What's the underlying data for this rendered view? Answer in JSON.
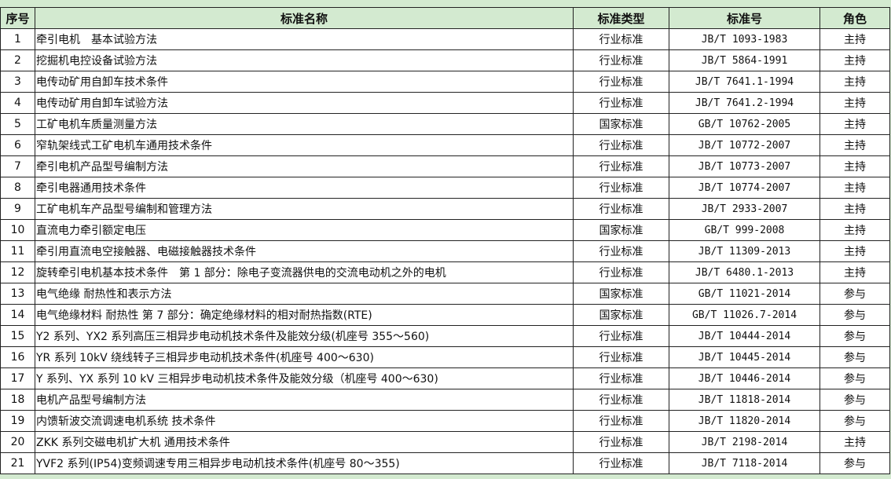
{
  "headers": [
    "序号",
    "标准名称",
    "标准类型",
    "标准号",
    "角色"
  ],
  "rows": [
    [
      "1",
      "牵引电机　基本试验方法",
      "行业标准",
      "JB/T 1093-1983",
      "主持"
    ],
    [
      "2",
      "挖掘机电控设备试验方法",
      "行业标准",
      "JB/T 5864-1991",
      "主持"
    ],
    [
      "3",
      "电传动矿用自卸车技术条件",
      "行业标准",
      "JB/T 7641.1-1994",
      "主持"
    ],
    [
      "4",
      "电传动矿用自卸车试验方法",
      "行业标准",
      "JB/T 7641.2-1994",
      "主持"
    ],
    [
      "5",
      "工矿电机车质量测量方法",
      "国家标准",
      "GB/T 10762-2005",
      "主持"
    ],
    [
      "6",
      "窄轨架线式工矿电机车通用技术条件",
      "行业标准",
      "JB/T 10772-2007",
      "主持"
    ],
    [
      "7",
      "牵引电机产品型号编制方法",
      "行业标准",
      "JB/T 10773-2007",
      "主持"
    ],
    [
      "8",
      "牵引电器通用技术条件",
      "行业标准",
      "JB/T 10774-2007",
      "主持"
    ],
    [
      "9",
      "工矿电机车产品型号编制和管理方法",
      "行业标准",
      "JB/T 2933-2007",
      "主持"
    ],
    [
      "10",
      "直流电力牵引额定电压",
      "国家标准",
      "GB/T 999-2008",
      "主持"
    ],
    [
      "11",
      "牵引用直流电空接触器、电磁接触器技术条件",
      "行业标准",
      "JB/T 11309-2013",
      "主持"
    ],
    [
      "12",
      "旋转牵引电机基本技术条件　第 1 部分：除电子变流器供电的交流电动机之外的电机",
      "行业标准",
      "JB/T 6480.1-2013",
      "主持"
    ],
    [
      "13",
      "电气绝缘 耐热性和表示方法",
      "国家标准",
      "GB/T 11021-2014",
      "参与"
    ],
    [
      "14",
      "电气绝缘材料 耐热性 第 7 部分：确定绝缘材料的相对耐热指数(RTE)",
      "国家标准",
      "GB/T 11026.7-2014",
      "参与"
    ],
    [
      "15",
      "Y2 系列、YX2 系列高压三相异步电动机技术条件及能效分级(机座号 355～560)",
      "行业标准",
      "JB/T 10444-2014",
      "参与"
    ],
    [
      "16",
      "YR 系列 10kV 绕线转子三相异步电动机技术条件(机座号 400～630)",
      "行业标准",
      "JB/T 10445-2014",
      "参与"
    ],
    [
      "17",
      "Y 系列、YX 系列 10 kV 三相异步电动机技术条件及能效分级（机座号 400～630)",
      "行业标准",
      "JB/T 10446-2014",
      "参与"
    ],
    [
      "18",
      "电机产品型号编制方法",
      "行业标准",
      "JB/T 11818-2014",
      "参与"
    ],
    [
      "19",
      "内馈斩波交流调速电机系统 技术条件",
      "行业标准",
      "JB/T 11820-2014",
      "参与"
    ],
    [
      "20",
      "ZKK 系列交磁电机扩大机 通用技术条件",
      "行业标准",
      "JB/T 2198-2014",
      "主持"
    ],
    [
      "21",
      "YVF2 系列(IP54)变频调速专用三相异步电动机技术条件(机座号 80～355)",
      "行业标准",
      "JB/T 7118-2014",
      "参与"
    ]
  ],
  "colors": {
    "header_bg": "#d3ead0",
    "border": "#222222"
  }
}
